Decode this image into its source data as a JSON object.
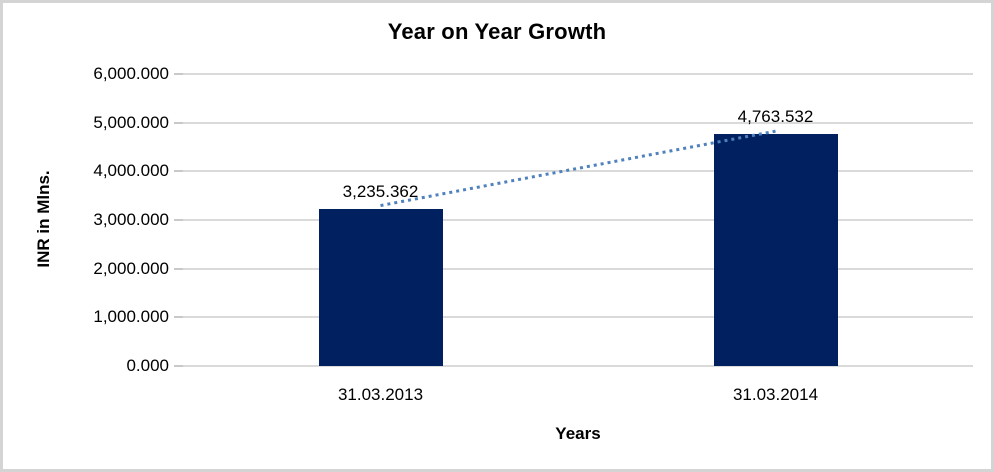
{
  "chart_data": {
    "type": "bar",
    "title": "Year on Year Growth",
    "xlabel": "Years",
    "ylabel": "INR in Mlns.",
    "categories": [
      "31.03.2013",
      "31.03.2014"
    ],
    "series": [
      {
        "name": "INR in Mlns.",
        "values": [
          3235.362,
          4763.532
        ]
      }
    ],
    "data_labels": [
      "3,235.362",
      "4,763.532"
    ],
    "ylim": [
      0,
      6000
    ],
    "ytick_interval": 1000,
    "ytick_labels": [
      "0.000",
      "1,000.000",
      "2,000.000",
      "3,000.000",
      "4,000.000",
      "5,000.000",
      "6,000.000"
    ],
    "grid": true,
    "legend": "none",
    "trendline": {
      "type": "linear",
      "style": "dotted",
      "color": "#4f81bd"
    },
    "colors": {
      "bar": "#002060",
      "gridline": "#dadada",
      "tick": "#c9c9c9",
      "text": "#000000",
      "chart_border": "#d4d4d4"
    }
  }
}
